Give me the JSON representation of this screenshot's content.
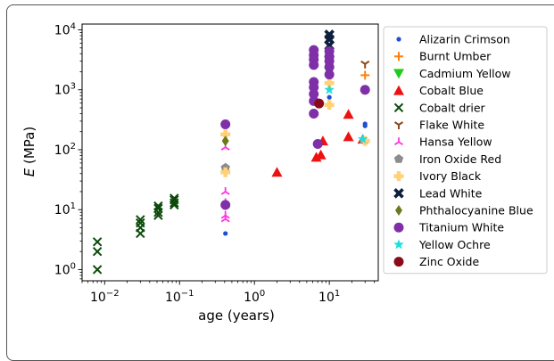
{
  "chart_data": {
    "type": "scatter",
    "title": "",
    "xlabel": "age (years)",
    "ylabel_prefix": "E",
    "ylabel_unit": " (MPa)",
    "xscale": "log",
    "yscale": "log",
    "xlim": [
      0.005,
      45
    ],
    "ylim": [
      0.65,
      12500
    ],
    "grid": false,
    "legend_position": "right",
    "x_ticks": [
      {
        "value": 0.01,
        "base": "10",
        "exp": "−2"
      },
      {
        "value": 0.1,
        "base": "10",
        "exp": "−1"
      },
      {
        "value": 1,
        "base": "10",
        "exp": "0"
      },
      {
        "value": 10,
        "base": "10",
        "exp": "1"
      }
    ],
    "y_ticks": [
      {
        "value": 1,
        "base": "10",
        "exp": "0"
      },
      {
        "value": 10,
        "base": "10",
        "exp": "1"
      },
      {
        "value": 100,
        "base": "10",
        "exp": "2"
      },
      {
        "value": 1000,
        "base": "10",
        "exp": "3"
      },
      {
        "value": 10000,
        "base": "10",
        "exp": "4"
      }
    ],
    "series": [
      {
        "name": "Alizarin Crimson",
        "marker": "dot",
        "color": "#1f4fd1",
        "points": [
          [
            0.41,
            4
          ],
          [
            10,
            750
          ],
          [
            30,
            270
          ],
          [
            30,
            250
          ]
        ]
      },
      {
        "name": "Burnt Umber",
        "marker": "plus",
        "color": "#ff7f0e",
        "points": [
          [
            30,
            1750
          ]
        ]
      },
      {
        "name": "Cadmium Yellow",
        "marker": "tri_down",
        "color": "#1fcc1f",
        "points": [
          [
            10,
            3000
          ],
          [
            10,
            2000
          ]
        ]
      },
      {
        "name": "Cobalt Blue",
        "marker": "tri_up",
        "color": "#ee1111",
        "points": [
          [
            2,
            42
          ],
          [
            6.7,
            75
          ],
          [
            7.7,
            82
          ],
          [
            8.2,
            140
          ],
          [
            18,
            390
          ],
          [
            18,
            165
          ],
          [
            28,
            150
          ]
        ]
      },
      {
        "name": "Cobalt drier",
        "marker": "x",
        "color": "#0b4a0b",
        "points": [
          [
            0.008,
            1
          ],
          [
            0.008,
            2
          ],
          [
            0.008,
            2.9
          ],
          [
            0.03,
            4
          ],
          [
            0.03,
            5
          ],
          [
            0.03,
            6
          ],
          [
            0.03,
            6.8
          ],
          [
            0.052,
            8
          ],
          [
            0.052,
            9
          ],
          [
            0.052,
            10.5
          ],
          [
            0.052,
            11.5
          ],
          [
            0.085,
            12
          ],
          [
            0.085,
            13
          ],
          [
            0.085,
            14.5
          ],
          [
            0.085,
            15.5
          ]
        ]
      },
      {
        "name": "Flake White",
        "marker": "tri_down_thin",
        "color": "#8b4a1a",
        "points": [
          [
            30,
            2700
          ]
        ]
      },
      {
        "name": "Hansa Yellow",
        "marker": "tri_thin",
        "color": "#ff33dd",
        "points": [
          [
            0.41,
            7
          ],
          [
            0.41,
            8
          ],
          [
            0.41,
            13
          ],
          [
            0.41,
            20
          ],
          [
            0.41,
            110
          ]
        ]
      },
      {
        "name": "Iron Oxide Red",
        "marker": "pentagon",
        "color": "#8c8c8c",
        "points": [
          [
            0.41,
            50
          ]
        ]
      },
      {
        "name": "Ivory Black",
        "marker": "plus_thick",
        "color": "#ffd27a",
        "points": [
          [
            0.41,
            42
          ],
          [
            0.41,
            180
          ],
          [
            10,
            560
          ],
          [
            10,
            1300
          ],
          [
            30,
            140
          ]
        ]
      },
      {
        "name": "Lead White",
        "marker": "x_thick",
        "color": "#0d1f3d",
        "points": [
          [
            10,
            5500
          ],
          [
            10,
            7000
          ],
          [
            10,
            8300
          ]
        ]
      },
      {
        "name": "Phthalocyanine Blue",
        "marker": "diamond",
        "color": "#6b7a1f",
        "points": [
          [
            0.41,
            12
          ],
          [
            0.41,
            140
          ]
        ]
      },
      {
        "name": "Titanium White",
        "marker": "circle",
        "color": "#7f2fa8",
        "points": [
          [
            0.41,
            265
          ],
          [
            0.41,
            12
          ],
          [
            6.2,
            4600
          ],
          [
            6.2,
            3800
          ],
          [
            6.2,
            3200
          ],
          [
            6.2,
            2600
          ],
          [
            6.2,
            1350
          ],
          [
            6.2,
            1100
          ],
          [
            6.2,
            850
          ],
          [
            6.2,
            650
          ],
          [
            6.2,
            400
          ],
          [
            7.0,
            125
          ],
          [
            10,
            4400
          ],
          [
            10,
            3600
          ],
          [
            10,
            3000
          ],
          [
            10,
            2400
          ],
          [
            10,
            1800
          ],
          [
            30,
            1000
          ]
        ]
      },
      {
        "name": "Yellow Ochre",
        "marker": "star",
        "color": "#22dddd",
        "points": [
          [
            10,
            1000
          ],
          [
            28,
            150
          ]
        ]
      },
      {
        "name": "Zinc Oxide",
        "marker": "circle",
        "color": "#8b0a1a",
        "points": [
          [
            7.3,
            590
          ]
        ]
      }
    ]
  }
}
